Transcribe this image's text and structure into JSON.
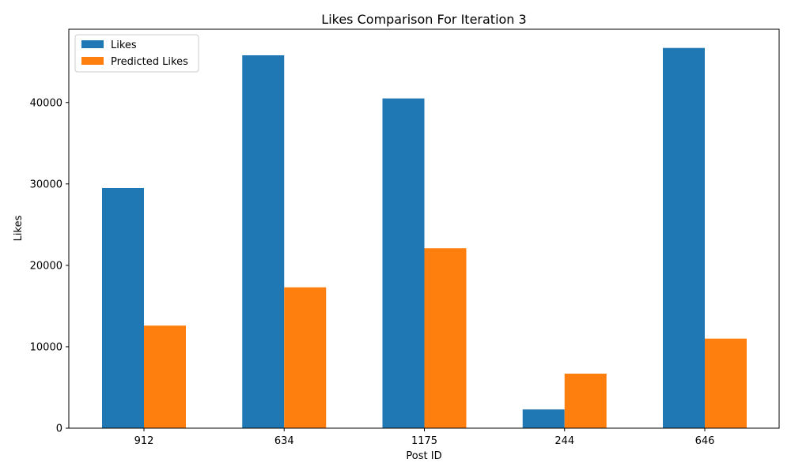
{
  "chart_data": {
    "type": "bar",
    "title": "Likes Comparison For Iteration 3",
    "xlabel": "Post ID",
    "ylabel": "Likes",
    "categories": [
      "912",
      "634",
      "1175",
      "244",
      "646"
    ],
    "series": [
      {
        "name": "Likes",
        "color": "#1f77b4",
        "values": [
          29500,
          45800,
          40500,
          2300,
          46700
        ]
      },
      {
        "name": "Predicted Likes",
        "color": "#ff7f0e",
        "values": [
          12600,
          17300,
          22100,
          6700,
          11000
        ]
      }
    ],
    "ylim": [
      0,
      49000
    ],
    "yticks": [
      0,
      10000,
      20000,
      30000,
      40000
    ],
    "grid": false,
    "legend_position": "top-left"
  }
}
